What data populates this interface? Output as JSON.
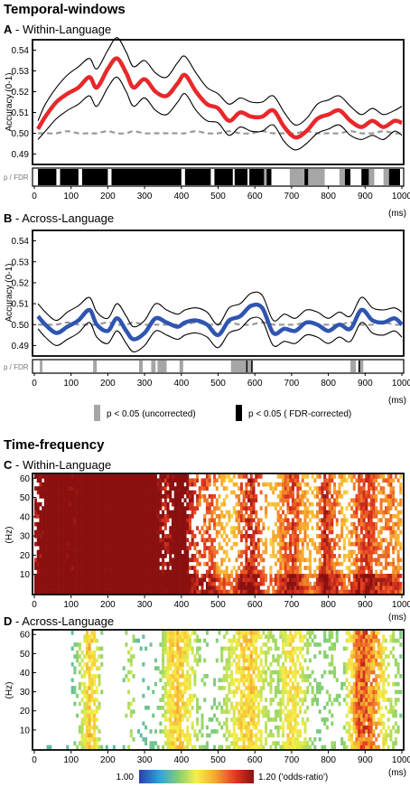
{
  "texts": {
    "section1": "Temporal-windows",
    "section2": "Time-frequency",
    "panelA": {
      "letter": "A",
      "title": " - Within-Language"
    },
    "panelB": {
      "letter": "B",
      "title": " - Across-Language"
    },
    "panelC": {
      "letter": "C",
      "title": " - Within-Language"
    },
    "panelD": {
      "letter": "D",
      "title": " - Across-Language"
    },
    "ylabel_acc": "Accuracy (0-1)",
    "ylabel_hz": "(Hz)",
    "ms": "(ms)",
    "pfdr": "p / FDR",
    "legend_unc": "p < 0.05 (uncorrected)",
    "legend_fdr": "p < 0.05 ( FDR-corrected)",
    "cb_min": "1.00",
    "cb_max": "1.20 ('odds-ratio')"
  },
  "colors": {
    "within": "#e8282a",
    "across": "#2f55b0",
    "chance": "#999999",
    "uncorrected": "#a6a6a6",
    "fdr": "#000000",
    "colormap": [
      "#2a3fb0",
      "#2aa4e0",
      "#8fd36a",
      "#f7f04a",
      "#f7a830",
      "#e33820",
      "#8a1010"
    ]
  },
  "chart_data": [
    {
      "type": "line",
      "panel": "A",
      "xlabel": "(ms)",
      "ylabel": "Accuracy (0-1)",
      "xlim": [
        0,
        1000
      ],
      "ylim": [
        0.485,
        0.545
      ],
      "xticks": [
        0,
        100,
        200,
        300,
        400,
        500,
        600,
        700,
        800,
        900,
        1000
      ],
      "yticks": [
        0.49,
        0.5,
        0.51,
        0.52,
        0.53,
        0.54
      ],
      "x": [
        10,
        30,
        60,
        90,
        120,
        150,
        170,
        200,
        225,
        250,
        270,
        300,
        330,
        360,
        390,
        410,
        440,
        470,
        500,
        530,
        560,
        590,
        620,
        650,
        680,
        710,
        740,
        770,
        800,
        830,
        860,
        890,
        920,
        950,
        980,
        1000
      ],
      "series": [
        {
          "role": "mean",
          "values": [
            0.502,
            0.508,
            0.515,
            0.519,
            0.522,
            0.527,
            0.522,
            0.531,
            0.536,
            0.529,
            0.522,
            0.526,
            0.52,
            0.518,
            0.524,
            0.528,
            0.52,
            0.514,
            0.512,
            0.506,
            0.51,
            0.508,
            0.508,
            0.511,
            0.503,
            0.498,
            0.501,
            0.507,
            0.509,
            0.511,
            0.506,
            0.503,
            0.506,
            0.503,
            0.506,
            0.505
          ]
        },
        {
          "role": "upper",
          "values": [
            0.506,
            0.514,
            0.522,
            0.528,
            0.532,
            0.536,
            0.531,
            0.54,
            0.546,
            0.539,
            0.532,
            0.535,
            0.529,
            0.527,
            0.534,
            0.537,
            0.529,
            0.522,
            0.519,
            0.514,
            0.517,
            0.515,
            0.515,
            0.518,
            0.51,
            0.504,
            0.507,
            0.514,
            0.516,
            0.518,
            0.513,
            0.509,
            0.512,
            0.509,
            0.511,
            0.513
          ]
        },
        {
          "role": "lower",
          "values": [
            0.497,
            0.501,
            0.507,
            0.511,
            0.514,
            0.518,
            0.513,
            0.522,
            0.527,
            0.52,
            0.513,
            0.517,
            0.511,
            0.509,
            0.515,
            0.519,
            0.511,
            0.506,
            0.505,
            0.499,
            0.503,
            0.501,
            0.501,
            0.504,
            0.496,
            0.492,
            0.495,
            0.5,
            0.502,
            0.504,
            0.499,
            0.497,
            0.499,
            0.497,
            0.501,
            0.499
          ]
        },
        {
          "role": "chance",
          "values": [
            0.5,
            0.5,
            0.5,
            0.501,
            0.5,
            0.5,
            0.5,
            0.501,
            0.5,
            0.5,
            0.501,
            0.5,
            0.5,
            0.5,
            0.5,
            0.5,
            0.501,
            0.5,
            0.5,
            0.501,
            0.5,
            0.5,
            0.501,
            0.5,
            0.5,
            0.5,
            0.501,
            0.5,
            0.5,
            0.5,
            0.501,
            0.5,
            0.5,
            0.501,
            0.5,
            0.5
          ]
        }
      ],
      "significance": {
        "fdr": [
          [
            10,
            60
          ],
          [
            70,
            120
          ],
          [
            130,
            200
          ],
          [
            210,
            400
          ],
          [
            410,
            480
          ],
          [
            490,
            540
          ],
          [
            545,
            580
          ],
          [
            585,
            625
          ],
          [
            632,
            645
          ],
          [
            735,
            745
          ],
          [
            845,
            860
          ],
          [
            890,
            910
          ],
          [
            965,
            995
          ]
        ],
        "uncorrected": [
          [
            625,
            632
          ],
          [
            695,
            735
          ],
          [
            745,
            790
          ],
          [
            830,
            845
          ],
          [
            910,
            925
          ],
          [
            950,
            965
          ]
        ]
      }
    },
    {
      "type": "line",
      "panel": "B",
      "xlabel": "(ms)",
      "ylabel": "Accuracy (0-1)",
      "xlim": [
        0,
        1000
      ],
      "ylim": [
        0.485,
        0.545
      ],
      "xticks": [
        0,
        100,
        200,
        300,
        400,
        500,
        600,
        700,
        800,
        900,
        1000
      ],
      "yticks": [
        0.49,
        0.5,
        0.51,
        0.52,
        0.53,
        0.54
      ],
      "x": [
        10,
        30,
        60,
        90,
        120,
        150,
        170,
        200,
        225,
        250,
        270,
        300,
        330,
        360,
        390,
        410,
        440,
        470,
        500,
        530,
        560,
        590,
        620,
        650,
        680,
        710,
        740,
        770,
        800,
        830,
        860,
        890,
        920,
        950,
        980,
        1000
      ],
      "series": [
        {
          "role": "mean",
          "values": [
            0.504,
            0.5,
            0.496,
            0.499,
            0.502,
            0.507,
            0.5,
            0.497,
            0.503,
            0.497,
            0.493,
            0.496,
            0.503,
            0.501,
            0.499,
            0.501,
            0.502,
            0.5,
            0.495,
            0.502,
            0.504,
            0.509,
            0.508,
            0.496,
            0.498,
            0.497,
            0.501,
            0.5,
            0.497,
            0.5,
            0.498,
            0.507,
            0.502,
            0.501,
            0.503,
            0.5
          ]
        },
        {
          "role": "upper",
          "values": [
            0.51,
            0.506,
            0.502,
            0.506,
            0.509,
            0.513,
            0.506,
            0.503,
            0.51,
            0.504,
            0.499,
            0.502,
            0.51,
            0.507,
            0.505,
            0.507,
            0.508,
            0.506,
            0.5,
            0.508,
            0.51,
            0.515,
            0.514,
            0.502,
            0.505,
            0.503,
            0.507,
            0.506,
            0.503,
            0.506,
            0.504,
            0.513,
            0.508,
            0.507,
            0.508,
            0.506
          ]
        },
        {
          "role": "lower",
          "values": [
            0.498,
            0.494,
            0.49,
            0.493,
            0.496,
            0.501,
            0.494,
            0.491,
            0.497,
            0.491,
            0.487,
            0.49,
            0.497,
            0.495,
            0.493,
            0.495,
            0.496,
            0.494,
            0.489,
            0.496,
            0.498,
            0.503,
            0.502,
            0.49,
            0.492,
            0.491,
            0.495,
            0.494,
            0.491,
            0.494,
            0.492,
            0.501,
            0.496,
            0.495,
            0.497,
            0.494
          ]
        },
        {
          "role": "chance",
          "values": [
            0.5,
            0.5,
            0.5,
            0.501,
            0.5,
            0.5,
            0.5,
            0.501,
            0.5,
            0.5,
            0.501,
            0.5,
            0.5,
            0.5,
            0.5,
            0.5,
            0.501,
            0.5,
            0.5,
            0.501,
            0.5,
            0.5,
            0.501,
            0.5,
            0.5,
            0.5,
            0.501,
            0.5,
            0.5,
            0.5,
            0.501,
            0.5,
            0.5,
            0.501,
            0.5,
            0.5
          ]
        }
      ],
      "significance": {
        "fdr": [
          [
            576,
            580
          ],
          [
            590,
            594
          ],
          [
            882,
            886
          ]
        ],
        "uncorrected": [
          [
            15,
            22
          ],
          [
            160,
            170
          ],
          [
            285,
            295
          ],
          [
            318,
            330
          ],
          [
            335,
            360
          ],
          [
            395,
            405
          ],
          [
            535,
            575
          ],
          [
            580,
            590
          ],
          [
            860,
            875
          ],
          [
            886,
            895
          ]
        ]
      }
    },
    {
      "type": "heatmap",
      "panel": "C",
      "xlabel": "(ms)",
      "ylabel": "(Hz)",
      "xlim": [
        0,
        1000
      ],
      "ylim": [
        0,
        62
      ],
      "xticks": [
        0,
        100,
        200,
        300,
        400,
        500,
        600,
        700,
        800,
        900,
        1000
      ],
      "yticks": [
        10,
        20,
        30,
        40,
        50,
        60
      ],
      "activity": [
        [
          0,
          0.5,
          0.6
        ],
        [
          30,
          0.8,
          1
        ],
        [
          60,
          0.85,
          1
        ],
        [
          100,
          0.7,
          1
        ],
        [
          130,
          0.8,
          1
        ],
        [
          160,
          0.9,
          1
        ],
        [
          200,
          0.95,
          1
        ],
        [
          240,
          0.95,
          1
        ],
        [
          270,
          0.9,
          1
        ],
        [
          300,
          0.85,
          1
        ],
        [
          330,
          0.75,
          1
        ],
        [
          360,
          0.5,
          0.7
        ],
        [
          385,
          0.75,
          1
        ],
        [
          400,
          1,
          1
        ],
        [
          420,
          0.5,
          0.8
        ],
        [
          450,
          0.35,
          0.3
        ],
        [
          480,
          0.35,
          0.6
        ],
        [
          510,
          0.2,
          0.4
        ],
        [
          540,
          0.15,
          0.4
        ],
        [
          565,
          0.35,
          0.6
        ],
        [
          590,
          0.45,
          0.9
        ],
        [
          610,
          0.35,
          0.5
        ],
        [
          640,
          0.15,
          0.2
        ],
        [
          670,
          0.25,
          0.6
        ],
        [
          700,
          0.4,
          0.9
        ],
        [
          730,
          0.25,
          0.7
        ],
        [
          760,
          0.15,
          0.3
        ],
        [
          790,
          0.45,
          0.9
        ],
        [
          820,
          0.3,
          0.6
        ],
        [
          850,
          0.15,
          0.3
        ],
        [
          880,
          0.35,
          0.8
        ],
        [
          910,
          0.4,
          0.9
        ],
        [
          940,
          0.25,
          0.6
        ],
        [
          970,
          0.3,
          0.7
        ],
        [
          1000,
          0.2,
          0.5
        ]
      ],
      "colorbar": {
        "min": 1.0,
        "max": 1.2,
        "label": "1.20 ('odds-ratio')"
      }
    },
    {
      "type": "heatmap",
      "panel": "D",
      "xlabel": "(ms)",
      "ylabel": "(Hz)",
      "xlim": [
        0,
        1000
      ],
      "ylim": [
        0,
        62
      ],
      "xticks": [
        0,
        100,
        200,
        300,
        400,
        500,
        600,
        700,
        800,
        900,
        1000
      ],
      "yticks": [
        10,
        20,
        30,
        40,
        50,
        60
      ],
      "activity": [
        [
          0,
          0,
          0
        ],
        [
          100,
          0,
          0
        ],
        [
          120,
          0.1,
          0.3
        ],
        [
          150,
          0.35,
          0.9
        ],
        [
          170,
          0.25,
          0.6
        ],
        [
          190,
          0,
          0
        ],
        [
          240,
          0,
          0
        ],
        [
          260,
          0.2,
          0.4
        ],
        [
          280,
          0,
          0.05
        ],
        [
          340,
          0.05,
          0.2
        ],
        [
          370,
          0.3,
          0.9
        ],
        [
          390,
          0.35,
          0.9
        ],
        [
          420,
          0.25,
          0.7
        ],
        [
          450,
          0.1,
          0.2
        ],
        [
          490,
          0.05,
          0.1
        ],
        [
          520,
          0.15,
          0.5
        ],
        [
          560,
          0.3,
          0.7
        ],
        [
          590,
          0.35,
          0.9
        ],
        [
          620,
          0.2,
          0.5
        ],
        [
          660,
          0.1,
          0.4
        ],
        [
          690,
          0.3,
          0.8
        ],
        [
          720,
          0.25,
          0.6
        ],
        [
          750,
          0.1,
          0.4
        ],
        [
          780,
          0.05,
          0.2
        ],
        [
          810,
          0.1,
          0.3
        ],
        [
          840,
          0.05,
          0.1
        ],
        [
          860,
          0.3,
          0.7
        ],
        [
          880,
          0.5,
          1
        ],
        [
          900,
          0.55,
          1
        ],
        [
          930,
          0.4,
          0.8
        ],
        [
          960,
          0.2,
          0.4
        ],
        [
          990,
          0.1,
          0.3
        ],
        [
          1000,
          0.05,
          0.2
        ]
      ],
      "colorbar": {
        "min": 1.0,
        "max": 1.2,
        "label": "1.20 ('odds-ratio')"
      }
    }
  ]
}
